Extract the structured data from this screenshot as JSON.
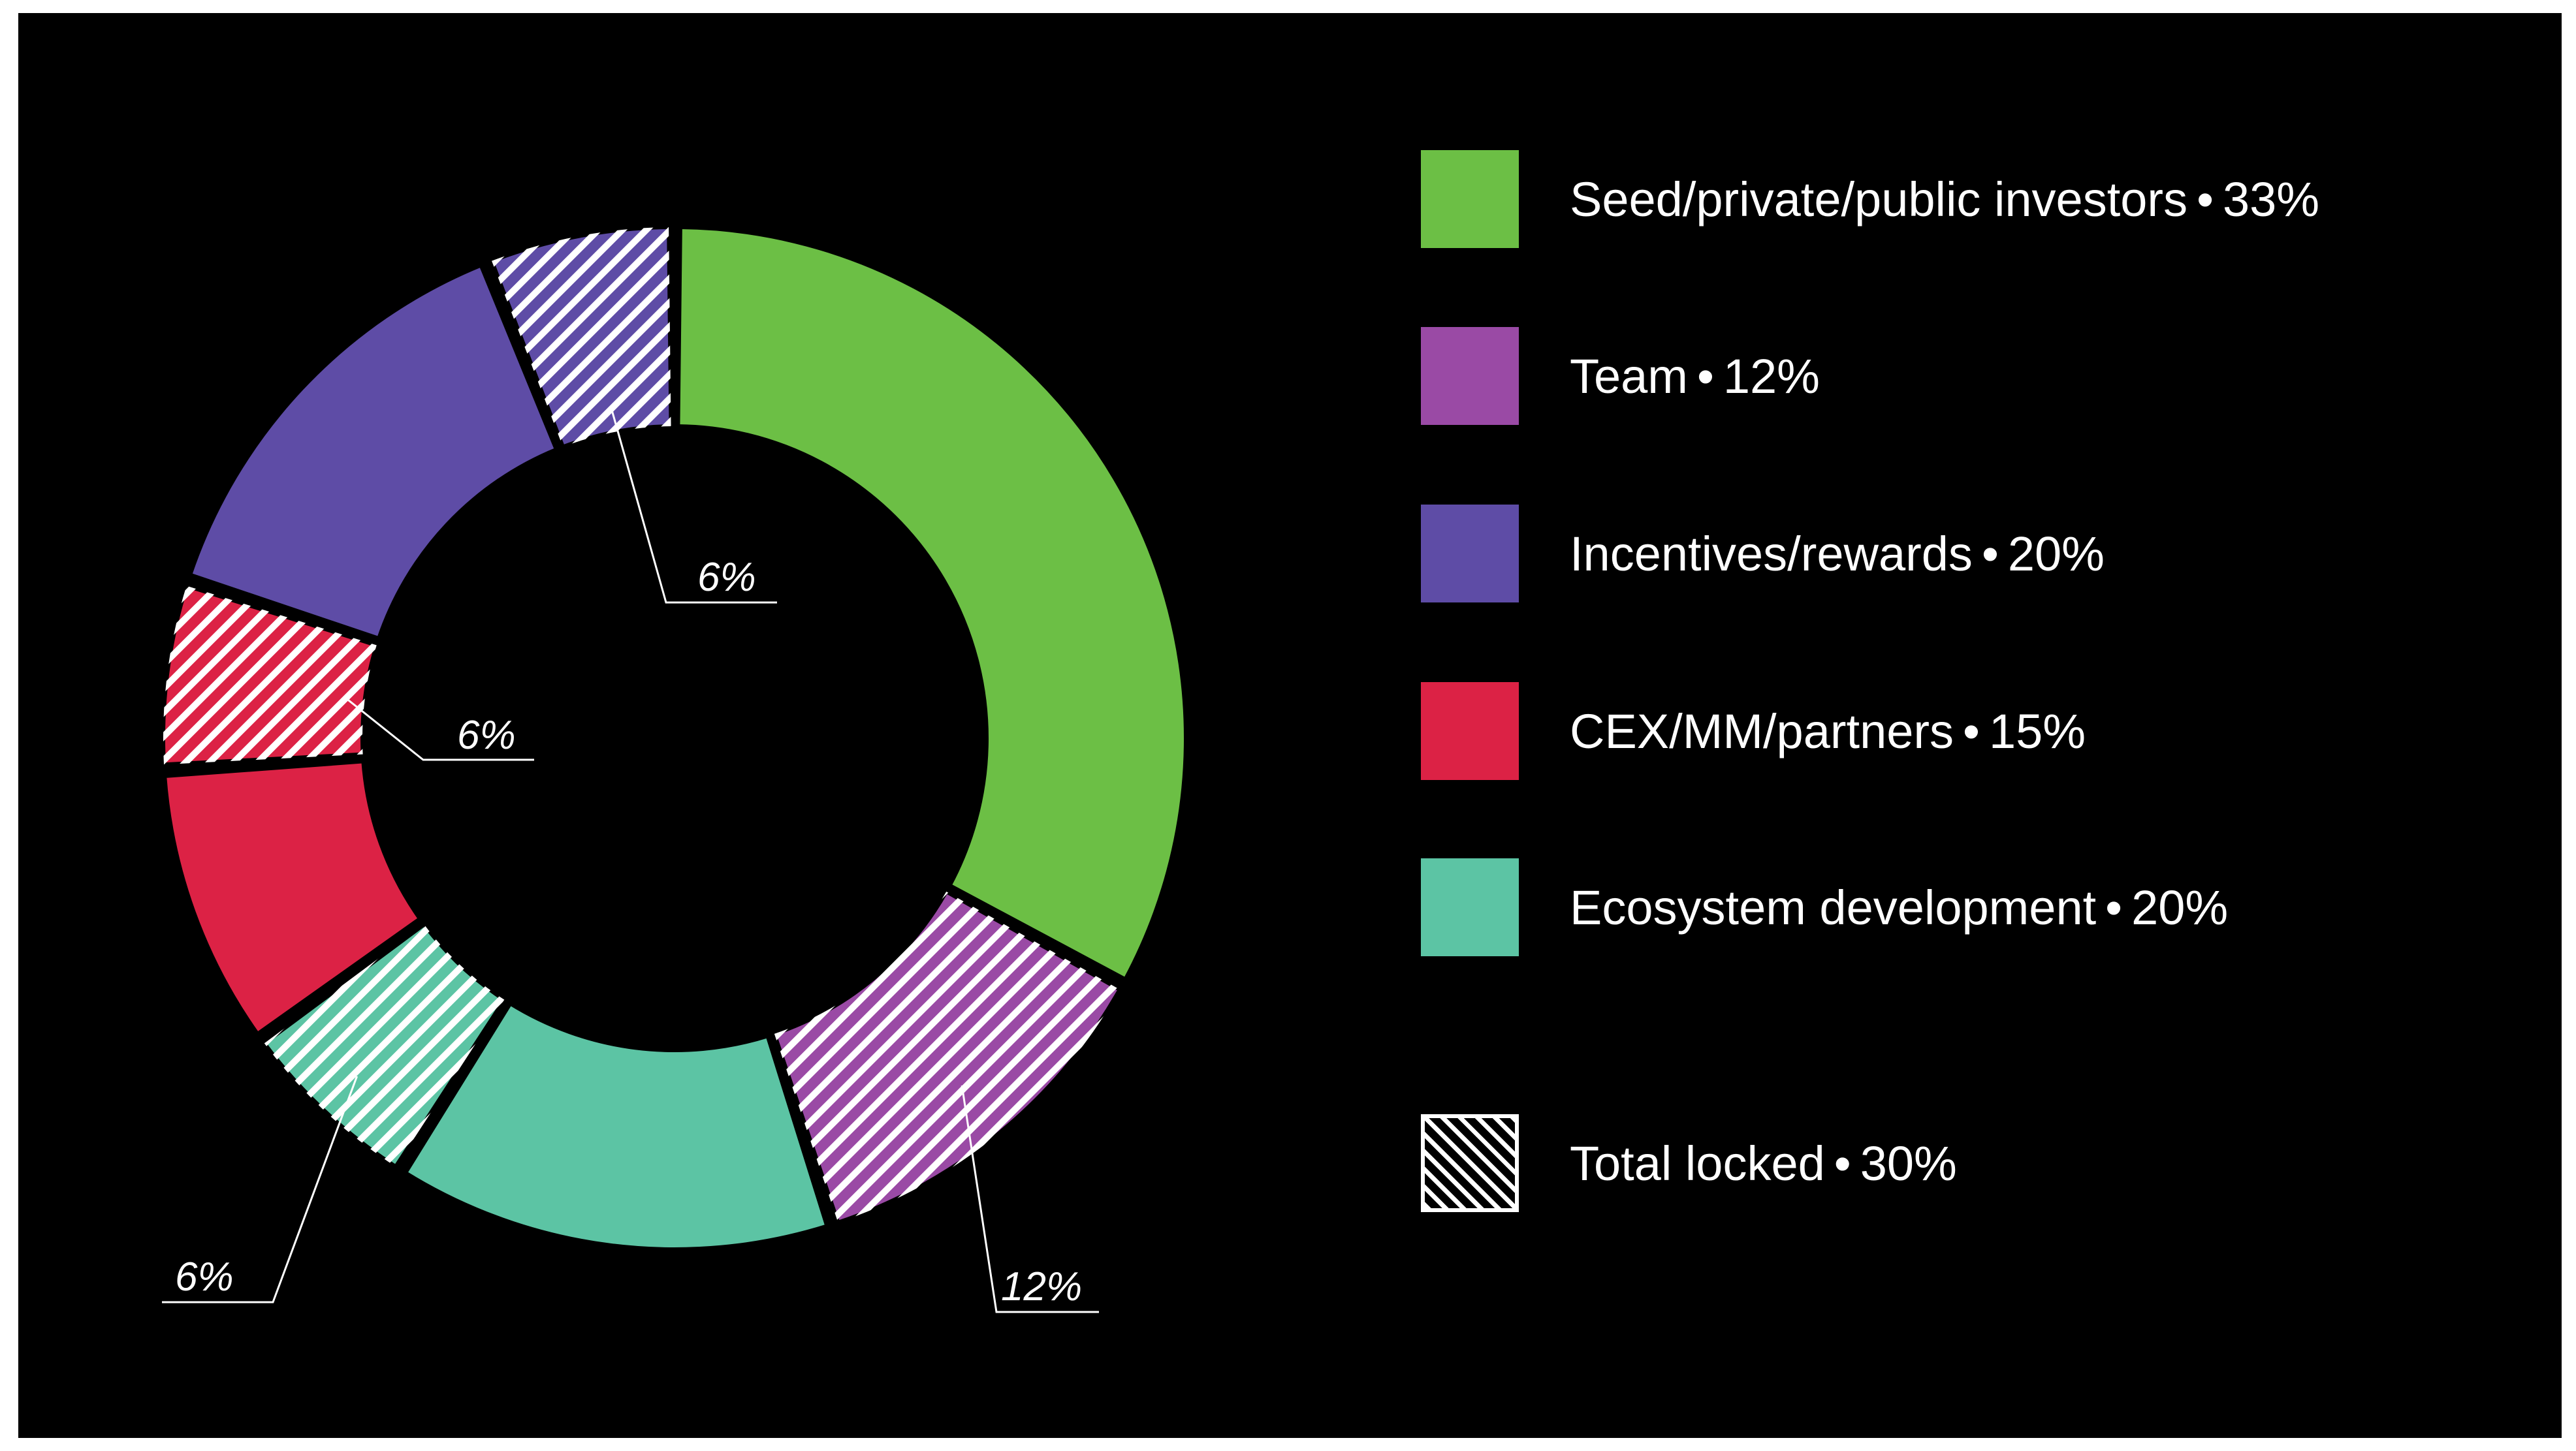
{
  "chart_data": {
    "type": "pie",
    "variant": "donut",
    "title": "",
    "segments": [
      {
        "name": "Seed/private/public investors",
        "value": 33,
        "color": "#6cbf45",
        "locked": false
      },
      {
        "name": "Team",
        "value": 12,
        "color": "#9a4aa5",
        "locked": true
      },
      {
        "name": "Ecosystem development",
        "value": 14,
        "color": "#5cc4a4",
        "locked": false
      },
      {
        "name": "Ecosystem development",
        "value": 6,
        "color": "#5cc4a4",
        "locked": true
      },
      {
        "name": "CEX/MM/partners",
        "value": 9,
        "color": "#dc2245",
        "locked": false
      },
      {
        "name": "CEX/MM/partners",
        "value": 6,
        "color": "#dc2245",
        "locked": true
      },
      {
        "name": "Incentives/rewards",
        "value": 14,
        "color": "#5e4ca6",
        "locked": false
      },
      {
        "name": "Incentives/rewards",
        "value": 6,
        "color": "#5e4ca6",
        "locked": true
      }
    ],
    "callouts": [
      "12%",
      "6%",
      "6%",
      "6%"
    ],
    "legend": [
      {
        "label": "Seed/private/public investors",
        "percent": "33%",
        "color": "#6cbf45",
        "pattern": "solid"
      },
      {
        "label": "Team",
        "percent": "12%",
        "color": "#9a4aa5",
        "pattern": "solid"
      },
      {
        "label": "Incentives/rewards",
        "percent": "20%",
        "color": "#5e4ca6",
        "pattern": "solid"
      },
      {
        "label": "CEX/MM/partners",
        "percent": "15%",
        "color": "#dc2245",
        "pattern": "solid"
      },
      {
        "label": "Ecosystem development",
        "percent": "20%",
        "color": "#5cc4a4",
        "pattern": "solid"
      },
      {
        "label": "Total locked",
        "percent": "30%",
        "color": "#ffffff",
        "pattern": "hatched"
      }
    ],
    "legend_placement": "right",
    "background": "#000000"
  }
}
